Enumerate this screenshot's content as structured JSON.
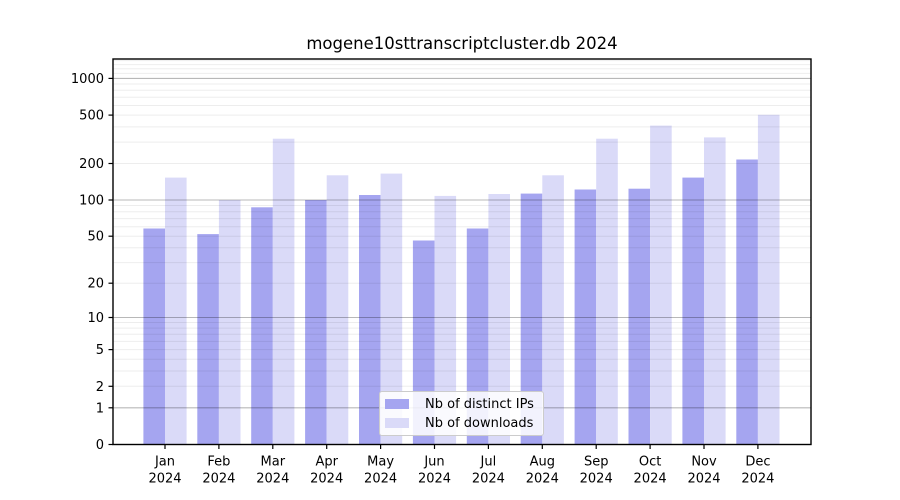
{
  "chart_data": {
    "type": "bar",
    "title": "mogene10sttranscriptcluster.db 2024",
    "year": "2024",
    "months": [
      "Jan",
      "Feb",
      "Mar",
      "Apr",
      "May",
      "Jun",
      "Jul",
      "Aug",
      "Sep",
      "Oct",
      "Nov",
      "Dec"
    ],
    "series": [
      {
        "name": "Nb of distinct IPs",
        "color": "#a5a5f0",
        "values": [
          58,
          52,
          87,
          100,
          110,
          46,
          58,
          113,
          122,
          124,
          153,
          216
        ]
      },
      {
        "name": "Nb of downloads",
        "color": "#dadaf8",
        "values": [
          153,
          100,
          320,
          160,
          165,
          108,
          112,
          160,
          320,
          410,
          328,
          503
        ]
      }
    ],
    "yscale": "log1p",
    "yticks": [
      0,
      1,
      2,
      5,
      10,
      20,
      50,
      100,
      200,
      500,
      1000
    ],
    "ylim": [
      0,
      1450
    ],
    "grid": true,
    "major_gridlines": [
      1,
      10,
      100,
      1000
    ],
    "legend_position": "lower center inside",
    "colors": {
      "spine": "#000000",
      "major_grid": "rgba(0,0,0,0.28)",
      "minor_grid": "rgba(0,0,0,0.07)"
    }
  }
}
